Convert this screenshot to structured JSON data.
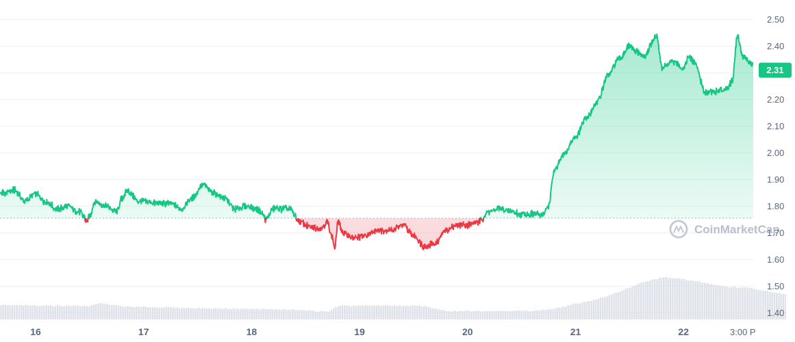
{
  "chart_data": {
    "type": "line",
    "title": "",
    "xlabel": "",
    "ylabel": "",
    "x_ticks": [
      "16",
      "17",
      "18",
      "19",
      "20",
      "21",
      "22",
      "3:00 P"
    ],
    "y_ticks": [
      "2.50",
      "2.40",
      "2.30",
      "2.20",
      "2.10",
      "2.00",
      "1.90",
      "1.80",
      "1.70",
      "1.60",
      "1.50",
      "1.40"
    ],
    "ylim": [
      1.4,
      2.5
    ],
    "reference_price": 1.755,
    "current_price": 2.31,
    "current_price_label": "2.31",
    "colors": {
      "up": "#16c784",
      "down": "#ea3943",
      "volume": "#d6d9e4",
      "grid": "#eff2f5"
    },
    "series": [
      {
        "values": [
          [
            15.55,
            1.76
          ],
          [
            15.6,
            1.84
          ],
          [
            15.7,
            1.85
          ],
          [
            15.8,
            1.86
          ],
          [
            15.9,
            1.82
          ],
          [
            16.0,
            1.845
          ],
          [
            16.1,
            1.815
          ],
          [
            16.2,
            1.79
          ],
          [
            16.3,
            1.8
          ],
          [
            16.4,
            1.78
          ],
          [
            16.45,
            1.76
          ],
          [
            16.47,
            1.74
          ],
          [
            16.5,
            1.76
          ],
          [
            16.55,
            1.82
          ],
          [
            16.65,
            1.8
          ],
          [
            16.75,
            1.78
          ],
          [
            16.8,
            1.83
          ],
          [
            16.85,
            1.86
          ],
          [
            16.95,
            1.82
          ],
          [
            17.05,
            1.815
          ],
          [
            17.15,
            1.81
          ],
          [
            17.25,
            1.81
          ],
          [
            17.35,
            1.79
          ],
          [
            17.45,
            1.83
          ],
          [
            17.55,
            1.88
          ],
          [
            17.65,
            1.85
          ],
          [
            17.75,
            1.83
          ],
          [
            17.85,
            1.79
          ],
          [
            17.95,
            1.8
          ],
          [
            18.05,
            1.79
          ],
          [
            18.1,
            1.77
          ],
          [
            18.13,
            1.75
          ],
          [
            18.2,
            1.79
          ],
          [
            18.35,
            1.79
          ],
          [
            18.45,
            1.74
          ],
          [
            18.55,
            1.72
          ],
          [
            18.65,
            1.72
          ],
          [
            18.7,
            1.74
          ],
          [
            18.75,
            1.68
          ],
          [
            18.77,
            1.64
          ],
          [
            18.8,
            1.74
          ],
          [
            18.85,
            1.7
          ],
          [
            18.95,
            1.68
          ],
          [
            19.05,
            1.69
          ],
          [
            19.15,
            1.71
          ],
          [
            19.3,
            1.71
          ],
          [
            19.4,
            1.73
          ],
          [
            19.5,
            1.69
          ],
          [
            19.6,
            1.65
          ],
          [
            19.7,
            1.66
          ],
          [
            19.8,
            1.71
          ],
          [
            19.9,
            1.73
          ],
          [
            20.0,
            1.73
          ],
          [
            20.1,
            1.74
          ],
          [
            20.2,
            1.78
          ],
          [
            20.3,
            1.79
          ],
          [
            20.4,
            1.78
          ],
          [
            20.5,
            1.77
          ],
          [
            20.6,
            1.77
          ],
          [
            20.7,
            1.77
          ],
          [
            20.75,
            1.8
          ],
          [
            20.8,
            1.93
          ],
          [
            20.9,
            2.0
          ],
          [
            21.0,
            2.06
          ],
          [
            21.1,
            2.13
          ],
          [
            21.2,
            2.19
          ],
          [
            21.3,
            2.29
          ],
          [
            21.4,
            2.35
          ],
          [
            21.5,
            2.4
          ],
          [
            21.55,
            2.38
          ],
          [
            21.65,
            2.36
          ],
          [
            21.7,
            2.41
          ],
          [
            21.75,
            2.44
          ],
          [
            21.8,
            2.32
          ],
          [
            21.9,
            2.34
          ],
          [
            22.0,
            2.32
          ],
          [
            22.05,
            2.36
          ],
          [
            22.1,
            2.34
          ],
          [
            22.2,
            2.23
          ],
          [
            22.3,
            2.23
          ],
          [
            22.4,
            2.24
          ],
          [
            22.45,
            2.27
          ],
          [
            22.5,
            2.44
          ],
          [
            22.55,
            2.36
          ],
          [
            22.65,
            2.33
          ],
          [
            22.75,
            2.33
          ],
          [
            22.85,
            2.29
          ],
          [
            22.95,
            2.31
          ]
        ]
      }
    ],
    "volume": [
      [
        15.55,
        0.3
      ],
      [
        16.0,
        0.29
      ],
      [
        16.5,
        0.28
      ],
      [
        16.6,
        0.34
      ],
      [
        16.8,
        0.27
      ],
      [
        17.2,
        0.25
      ],
      [
        17.6,
        0.23
      ],
      [
        18.0,
        0.22
      ],
      [
        18.4,
        0.2
      ],
      [
        18.7,
        0.16
      ],
      [
        18.8,
        0.28
      ],
      [
        19.2,
        0.29
      ],
      [
        19.6,
        0.28
      ],
      [
        19.8,
        0.17
      ],
      [
        20.2,
        0.18
      ],
      [
        20.6,
        0.18
      ],
      [
        20.8,
        0.22
      ],
      [
        21.0,
        0.33
      ],
      [
        21.2,
        0.42
      ],
      [
        21.4,
        0.58
      ],
      [
        21.6,
        0.76
      ],
      [
        21.8,
        0.88
      ],
      [
        22.0,
        0.84
      ],
      [
        22.2,
        0.76
      ],
      [
        22.4,
        0.68
      ],
      [
        22.6,
        0.66
      ],
      [
        22.8,
        0.58
      ],
      [
        22.95,
        0.52
      ]
    ]
  },
  "watermark": {
    "text": "CoinMarketCap",
    "icon": "coinmarketcap-logo-icon"
  }
}
